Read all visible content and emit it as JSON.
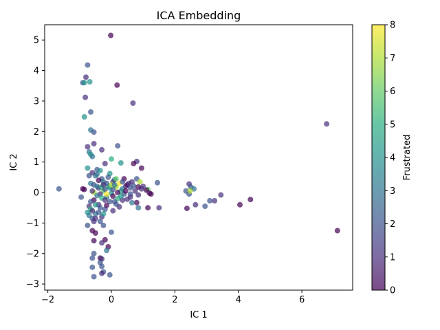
{
  "chart_data": {
    "type": "scatter",
    "title": "ICA Embedding",
    "xlabel": "IC 1",
    "ylabel": "IC 2",
    "xlim": [
      -2.1,
      7.6
    ],
    "ylim": [
      -3.2,
      5.5
    ],
    "xticks": [
      -2,
      0,
      2,
      4,
      6
    ],
    "yticks": [
      -3,
      -2,
      -1,
      0,
      1,
      2,
      3,
      4,
      5
    ],
    "grid": false,
    "colorbar": {
      "label": "Frustrated",
      "colormap": "viridis",
      "range": [
        0,
        8
      ],
      "ticks": [
        0,
        1,
        2,
        3,
        4,
        5,
        6,
        7,
        8
      ]
    },
    "marker_alpha": 0.7,
    "points": [
      {
        "x": -0.02,
        "y": 5.15,
        "c": 0
      },
      {
        "x": -0.75,
        "y": 4.18,
        "c": 2
      },
      {
        "x": -0.8,
        "y": 3.78,
        "c": 1
      },
      {
        "x": -0.9,
        "y": 3.6,
        "c": 2
      },
      {
        "x": -0.85,
        "y": 3.6,
        "c": 4
      },
      {
        "x": -0.68,
        "y": 3.63,
        "c": 4
      },
      {
        "x": 0.18,
        "y": 3.52,
        "c": 0
      },
      {
        "x": -0.82,
        "y": 3.12,
        "c": 1
      },
      {
        "x": 0.68,
        "y": 2.93,
        "c": 1
      },
      {
        "x": -0.65,
        "y": 2.64,
        "c": 2
      },
      {
        "x": -0.85,
        "y": 2.48,
        "c": 4
      },
      {
        "x": -0.65,
        "y": 2.05,
        "c": 3
      },
      {
        "x": -0.55,
        "y": 1.98,
        "c": 2
      },
      {
        "x": -0.55,
        "y": 1.6,
        "c": 1
      },
      {
        "x": 0.2,
        "y": 1.53,
        "c": 2
      },
      {
        "x": -0.75,
        "y": 1.5,
        "c": 1
      },
      {
        "x": -0.3,
        "y": 1.4,
        "c": 1
      },
      {
        "x": -0.7,
        "y": 1.33,
        "c": 3
      },
      {
        "x": -0.65,
        "y": 1.25,
        "c": 4
      },
      {
        "x": -0.6,
        "y": 1.18,
        "c": 3
      },
      {
        "x": 0.0,
        "y": 1.1,
        "c": 5
      },
      {
        "x": 0.8,
        "y": 1.02,
        "c": 1
      },
      {
        "x": 0.7,
        "y": 0.95,
        "c": 0
      },
      {
        "x": 0.3,
        "y": 0.97,
        "c": 4
      },
      {
        "x": -0.2,
        "y": 0.95,
        "c": 1
      },
      {
        "x": 0.95,
        "y": 0.8,
        "c": 0
      },
      {
        "x": -0.75,
        "y": 0.8,
        "c": 4
      },
      {
        "x": -0.45,
        "y": 0.75,
        "c": 2
      },
      {
        "x": -0.05,
        "y": 0.62,
        "c": 4
      },
      {
        "x": -0.5,
        "y": 0.55,
        "c": 3
      },
      {
        "x": -0.3,
        "y": 0.45,
        "c": 2
      },
      {
        "x": 0.1,
        "y": 0.42,
        "c": 3
      },
      {
        "x": 0.4,
        "y": 0.45,
        "c": 0
      },
      {
        "x": 0.8,
        "y": 0.45,
        "c": 2
      },
      {
        "x": 0.65,
        "y": 0.35,
        "c": 1
      },
      {
        "x": 0.9,
        "y": 0.35,
        "c": 7
      },
      {
        "x": 1.45,
        "y": 0.32,
        "c": 2
      },
      {
        "x": 0.25,
        "y": 0.3,
        "c": 8
      },
      {
        "x": -0.65,
        "y": 0.3,
        "c": 3
      },
      {
        "x": 0.45,
        "y": 0.2,
        "c": 1
      },
      {
        "x": 0.5,
        "y": 0.25,
        "c": 0
      },
      {
        "x": -0.1,
        "y": 0.2,
        "c": 5
      },
      {
        "x": 0.15,
        "y": 0.18,
        "c": 7
      },
      {
        "x": -0.4,
        "y": 0.15,
        "c": 1
      },
      {
        "x": -0.9,
        "y": 0.12,
        "c": 0
      },
      {
        "x": -0.85,
        "y": 0.1,
        "c": 0
      },
      {
        "x": -1.65,
        "y": 0.12,
        "c": 2
      },
      {
        "x": 0.6,
        "y": 0.15,
        "c": 2
      },
      {
        "x": 0.95,
        "y": 0.12,
        "c": 1
      },
      {
        "x": 1.15,
        "y": 0.1,
        "c": 6
      },
      {
        "x": 1.1,
        "y": 0.08,
        "c": 0
      },
      {
        "x": 1.2,
        "y": -0.02,
        "c": 0
      },
      {
        "x": 1.25,
        "y": -0.05,
        "c": 0
      },
      {
        "x": 0.75,
        "y": 0.05,
        "c": 1
      },
      {
        "x": 0.3,
        "y": 0.05,
        "c": 5
      },
      {
        "x": -0.25,
        "y": 0.05,
        "c": 6
      },
      {
        "x": -0.55,
        "y": 0.0,
        "c": 7
      },
      {
        "x": 0.0,
        "y": -0.02,
        "c": 4
      },
      {
        "x": -0.35,
        "y": -0.05,
        "c": 1
      },
      {
        "x": 0.6,
        "y": -0.05,
        "c": 2
      },
      {
        "x": 0.85,
        "y": -0.08,
        "c": 1
      },
      {
        "x": -0.95,
        "y": -0.15,
        "c": 2
      },
      {
        "x": -0.15,
        "y": -0.15,
        "c": 3
      },
      {
        "x": 0.2,
        "y": -0.2,
        "c": 5
      },
      {
        "x": 0.5,
        "y": -0.22,
        "c": 1
      },
      {
        "x": -0.55,
        "y": -0.25,
        "c": 0
      },
      {
        "x": 0.1,
        "y": -0.3,
        "c": 2
      },
      {
        "x": 0.8,
        "y": -0.33,
        "c": 0
      },
      {
        "x": 0.65,
        "y": -0.33,
        "c": 3
      },
      {
        "x": -0.4,
        "y": -0.4,
        "c": 1
      },
      {
        "x": -0.7,
        "y": -0.45,
        "c": 1
      },
      {
        "x": 0.25,
        "y": -0.47,
        "c": 1
      },
      {
        "x": 0.85,
        "y": -0.5,
        "c": 3
      },
      {
        "x": 1.15,
        "y": -0.5,
        "c": 0
      },
      {
        "x": 1.5,
        "y": -0.5,
        "c": 1
      },
      {
        "x": -0.65,
        "y": -0.55,
        "c": 5
      },
      {
        "x": -0.2,
        "y": -0.55,
        "c": 2
      },
      {
        "x": 0.05,
        "y": -0.6,
        "c": 1
      },
      {
        "x": -0.75,
        "y": -0.65,
        "c": 4
      },
      {
        "x": -0.5,
        "y": -0.7,
        "c": 3
      },
      {
        "x": -0.3,
        "y": -0.8,
        "c": 1
      },
      {
        "x": -0.6,
        "y": -0.85,
        "c": 2
      },
      {
        "x": -0.55,
        "y": -0.95,
        "c": 1
      },
      {
        "x": -0.75,
        "y": -1.08,
        "c": 2
      },
      {
        "x": -0.25,
        "y": -1.08,
        "c": 2
      },
      {
        "x": -0.6,
        "y": -1.25,
        "c": 0
      },
      {
        "x": -0.5,
        "y": -1.33,
        "c": 0
      },
      {
        "x": 0.0,
        "y": -1.3,
        "c": 2
      },
      {
        "x": -0.55,
        "y": -1.58,
        "c": 0
      },
      {
        "x": -0.2,
        "y": -1.55,
        "c": 0
      },
      {
        "x": -0.3,
        "y": -1.65,
        "c": 1
      },
      {
        "x": -0.1,
        "y": -1.78,
        "c": 0
      },
      {
        "x": -0.15,
        "y": -1.9,
        "c": 3
      },
      {
        "x": -0.55,
        "y": -2.0,
        "c": 2
      },
      {
        "x": -0.6,
        "y": -2.15,
        "c": 2
      },
      {
        "x": -0.35,
        "y": -2.15,
        "c": 0
      },
      {
        "x": -0.3,
        "y": -2.18,
        "c": 1
      },
      {
        "x": -0.35,
        "y": -2.3,
        "c": 2
      },
      {
        "x": -0.6,
        "y": -2.45,
        "c": 2
      },
      {
        "x": -0.3,
        "y": -2.42,
        "c": 2
      },
      {
        "x": -0.25,
        "y": -2.6,
        "c": 2
      },
      {
        "x": -0.3,
        "y": -2.65,
        "c": 1
      },
      {
        "x": -0.05,
        "y": -2.7,
        "c": 2
      },
      {
        "x": -0.55,
        "y": -2.76,
        "c": 2
      },
      {
        "x": 2.35,
        "y": 0.05,
        "c": 2
      },
      {
        "x": 2.45,
        "y": 0.28,
        "c": 1
      },
      {
        "x": 2.5,
        "y": 0.18,
        "c": 2
      },
      {
        "x": 2.6,
        "y": 0.12,
        "c": 3
      },
      {
        "x": 2.45,
        "y": -0.05,
        "c": 2
      },
      {
        "x": 2.48,
        "y": 0.05,
        "c": 7
      },
      {
        "x": 2.38,
        "y": -0.52,
        "c": 0
      },
      {
        "x": 2.65,
        "y": -0.4,
        "c": 1
      },
      {
        "x": 2.95,
        "y": -0.45,
        "c": 2
      },
      {
        "x": 3.1,
        "y": -0.27,
        "c": 2
      },
      {
        "x": 3.25,
        "y": -0.27,
        "c": 1
      },
      {
        "x": 3.45,
        "y": -0.08,
        "c": 1
      },
      {
        "x": 4.05,
        "y": -0.4,
        "c": 0
      },
      {
        "x": 4.38,
        "y": -0.23,
        "c": 0
      },
      {
        "x": 6.78,
        "y": 2.25,
        "c": 1
      },
      {
        "x": 7.12,
        "y": -1.25,
        "c": 0
      },
      {
        "x": -0.45,
        "y": 0.6,
        "c": 3
      },
      {
        "x": -0.6,
        "y": 0.65,
        "c": 1
      },
      {
        "x": -0.35,
        "y": 0.72,
        "c": 4
      },
      {
        "x": -0.7,
        "y": 0.55,
        "c": 2
      },
      {
        "x": -0.4,
        "y": 0.4,
        "c": 0
      },
      {
        "x": -0.25,
        "y": 0.35,
        "c": 3
      },
      {
        "x": -0.15,
        "y": 0.3,
        "c": 2
      },
      {
        "x": 0.05,
        "y": 0.35,
        "c": 1
      },
      {
        "x": 0.15,
        "y": 0.45,
        "c": 6
      },
      {
        "x": -0.55,
        "y": 0.25,
        "c": 2
      },
      {
        "x": -0.45,
        "y": 0.2,
        "c": 3
      },
      {
        "x": -0.3,
        "y": 0.18,
        "c": 5
      },
      {
        "x": -0.2,
        "y": 0.1,
        "c": 2
      },
      {
        "x": -0.05,
        "y": 0.15,
        "c": 4
      },
      {
        "x": 0.05,
        "y": 0.1,
        "c": 2
      },
      {
        "x": 0.2,
        "y": 0.0,
        "c": 0
      },
      {
        "x": 0.35,
        "y": 0.12,
        "c": 3
      },
      {
        "x": 0.4,
        "y": -0.05,
        "c": 2
      },
      {
        "x": -0.6,
        "y": 0.05,
        "c": 1
      },
      {
        "x": -0.45,
        "y": -0.1,
        "c": 3
      },
      {
        "x": -0.3,
        "y": -0.18,
        "c": 5
      },
      {
        "x": -0.2,
        "y": -0.25,
        "c": 1
      },
      {
        "x": -0.05,
        "y": -0.3,
        "c": 2
      },
      {
        "x": 0.05,
        "y": -0.12,
        "c": 0
      },
      {
        "x": -0.65,
        "y": -0.3,
        "c": 2
      },
      {
        "x": -0.5,
        "y": -0.4,
        "c": 4
      },
      {
        "x": -0.35,
        "y": -0.5,
        "c": 2
      },
      {
        "x": -0.15,
        "y": -0.42,
        "c": 0
      },
      {
        "x": 0.15,
        "y": -0.38,
        "c": 2
      },
      {
        "x": 0.35,
        "y": -0.25,
        "c": 1
      },
      {
        "x": -0.6,
        "y": -0.6,
        "c": 1
      },
      {
        "x": -0.4,
        "y": -0.65,
        "c": 2
      },
      {
        "x": -0.25,
        "y": -0.7,
        "c": 4
      },
      {
        "x": -0.7,
        "y": -0.75,
        "c": 3
      },
      {
        "x": -0.5,
        "y": -0.85,
        "c": 1
      },
      {
        "x": -0.35,
        "y": -0.95,
        "c": 2
      },
      {
        "x": 0.55,
        "y": 0.3,
        "c": 1
      },
      {
        "x": 0.7,
        "y": 0.22,
        "c": 2
      },
      {
        "x": 0.85,
        "y": 0.18,
        "c": 0
      },
      {
        "x": 1.0,
        "y": 0.2,
        "c": 1
      },
      {
        "x": 0.35,
        "y": 0.35,
        "c": 2
      },
      {
        "x": 0.45,
        "y": 0.05,
        "c": 0
      },
      {
        "x": 0.6,
        "y": -0.15,
        "c": 1
      },
      {
        "x": 0.3,
        "y": -0.12,
        "c": 4
      },
      {
        "x": -0.1,
        "y": 0.5,
        "c": 2
      },
      {
        "x": 0.0,
        "y": 0.25,
        "c": 7
      },
      {
        "x": -0.15,
        "y": -0.05,
        "c": 8
      },
      {
        "x": 0.1,
        "y": 0.25,
        "c": 3
      },
      {
        "x": -0.25,
        "y": 0.25,
        "c": 1
      }
    ]
  }
}
